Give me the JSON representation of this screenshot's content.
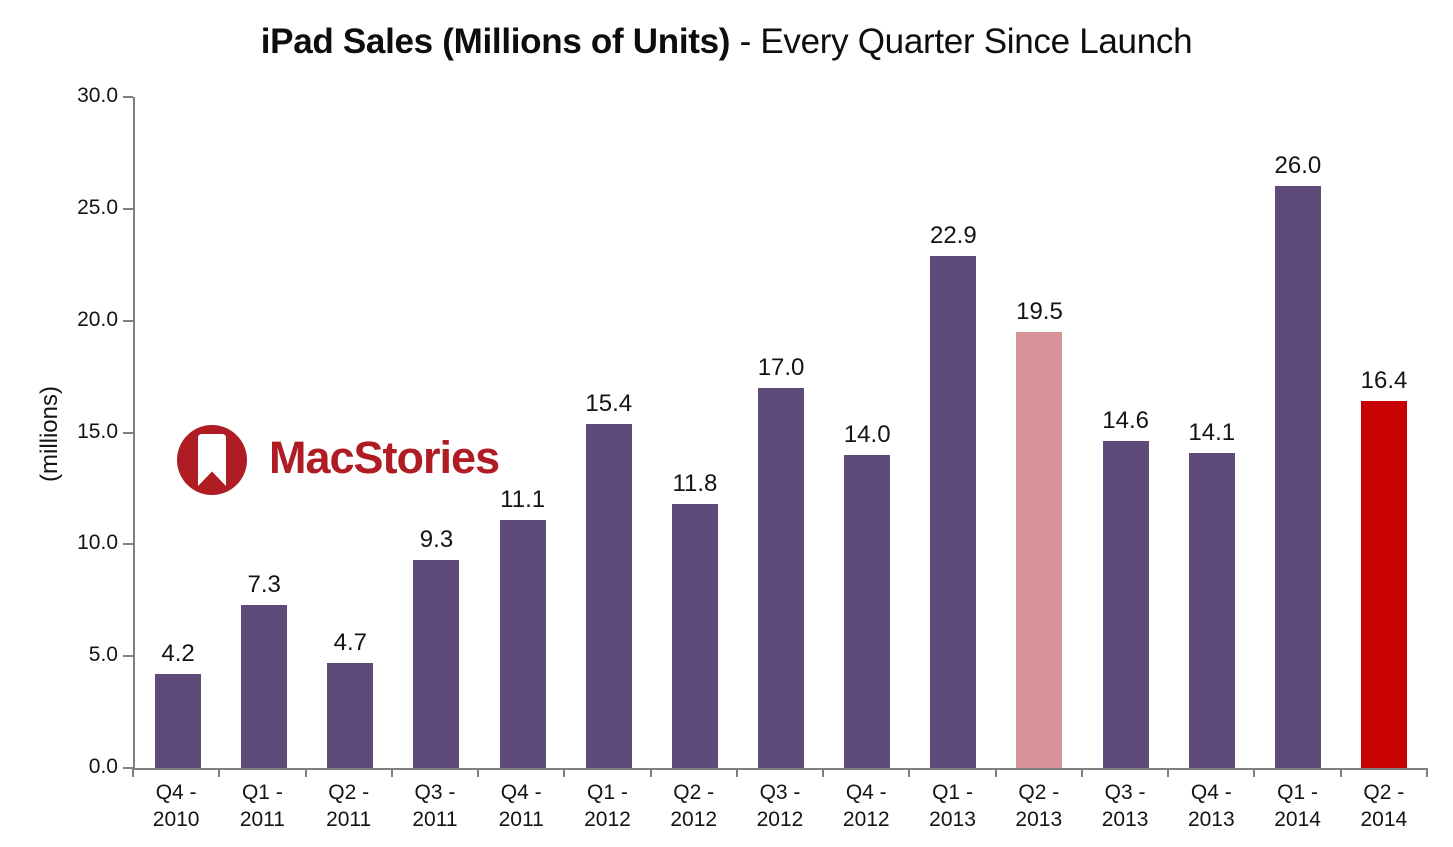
{
  "page": {
    "background": "#ffffff"
  },
  "title": {
    "bold": "iPad Sales (Millions of Units)",
    "regular": " - Every Quarter Since Launch"
  },
  "axes": {
    "axis_color": "#808080",
    "text_color": "#141414"
  },
  "watermark": {
    "text": "MacStories",
    "color": "#b01c23",
    "icon": "bookmark-icon"
  },
  "chart_data": {
    "type": "bar",
    "title": "iPad Sales (Millions of Units) - Every Quarter Since Launch",
    "xlabel": "",
    "ylabel": "(millions)",
    "ylim": [
      0,
      30
    ],
    "yticks": [
      0,
      5,
      10,
      15,
      20,
      25,
      30
    ],
    "ytick_labels": [
      "0.0",
      "5.0",
      "10.0",
      "15.0",
      "20.0",
      "25.0",
      "30.0"
    ],
    "grid": false,
    "legend": false,
    "categories": [
      "Q4 - 2010",
      "Q1 - 2011",
      "Q2 - 2011",
      "Q3 - 2011",
      "Q4 - 2011",
      "Q1 - 2012",
      "Q2 - 2012",
      "Q3 - 2012",
      "Q4 - 2012",
      "Q1 - 2013",
      "Q2 - 2013",
      "Q3 - 2013",
      "Q4 - 2013",
      "Q1 - 2014",
      "Q2 - 2014"
    ],
    "values": [
      4.2,
      7.3,
      4.7,
      9.3,
      11.1,
      15.4,
      11.8,
      17.0,
      14.0,
      22.9,
      19.5,
      14.6,
      14.1,
      26.0,
      16.4
    ],
    "value_labels": [
      "4.2",
      "7.3",
      "4.7",
      "9.3",
      "11.1",
      "15.4",
      "11.8",
      "17.0",
      "14.0",
      "22.9",
      "19.5",
      "14.6",
      "14.1",
      "26.0",
      "16.4"
    ],
    "default_bar_color": "#5e4b7a",
    "bar_colors": [
      "#5e4b7a",
      "#5e4b7a",
      "#5e4b7a",
      "#5e4b7a",
      "#5e4b7a",
      "#5e4b7a",
      "#5e4b7a",
      "#5e4b7a",
      "#5e4b7a",
      "#5e4b7a",
      "#d99499",
      "#5e4b7a",
      "#5e4b7a",
      "#5e4b7a",
      "#c80202"
    ],
    "highlighted_bars": {
      "Q2 - 2013": "#d99499",
      "Q2 - 2014": "#c80202"
    }
  }
}
